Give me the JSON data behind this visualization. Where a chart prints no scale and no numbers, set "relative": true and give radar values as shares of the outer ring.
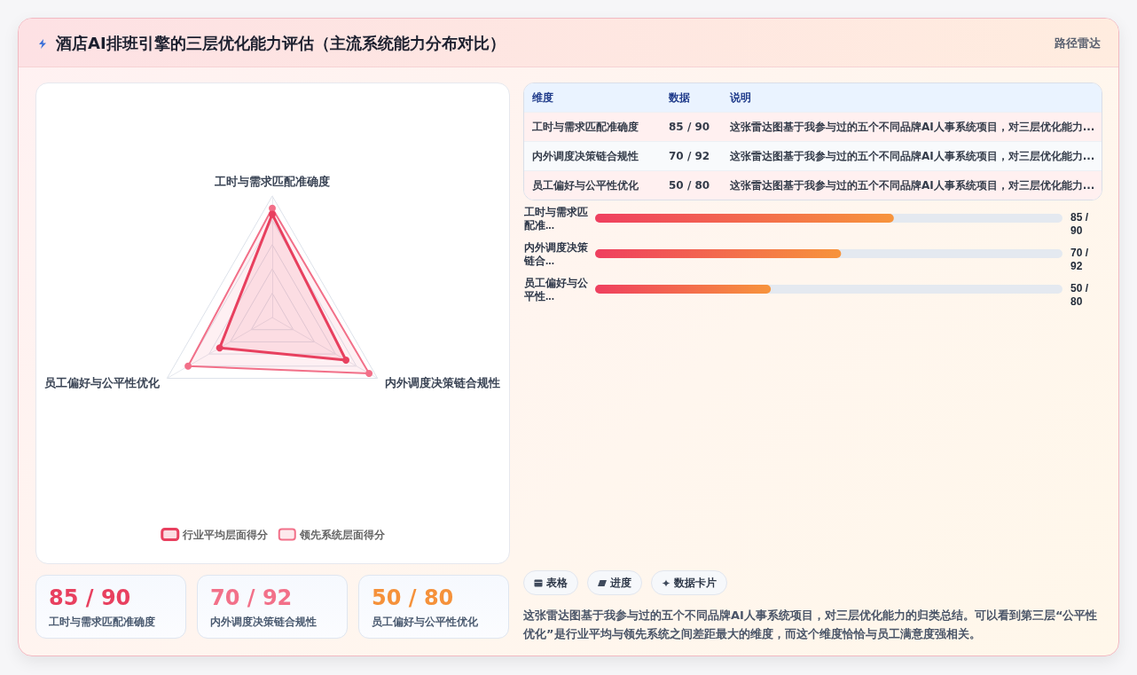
{
  "chart_data": [
    {
      "type": "other",
      "title": "酒店AI排班引擎的三层优化能力评估（主流系统能力分布对比）",
      "subtitle": "路径雷达"
    },
    {
      "type": "radar",
      "relative": true,
      "categories": [
        "工时与需求匹配准确度",
        "内外调度决策链合规性",
        "员工偏好与公平性优化"
      ],
      "series": [
        {
          "name": "行业平均层面得分",
          "color": "#e8405f",
          "values": [
            0.85,
            0.7,
            0.5
          ]
        },
        {
          "name": "领先系统层面得分",
          "color": "#f27089",
          "values": [
            0.9,
            0.92,
            0.8
          ]
        }
      ],
      "grid": true,
      "legend": "bottom",
      "marker": "circle",
      "line_style": "solid"
    },
    {
      "type": "other",
      "annotations": [
        "维度",
        "数据",
        "说明",
        "工时与需求匹配准确度",
        "85 / 90",
        "这张雷达图基于我参与过的五个不同品牌AI人事系统项目，对三层优化能力...",
        "内外调度决策链合规性",
        "70 / 92",
        "这张雷达图基于我参与过的五个不同品牌AI人事系统项目，对三层优化能力...",
        "员工偏好与公平性优化",
        "50 / 80",
        "这张雷达图基于我参与过的五个不同品牌AI人事系统项目，对三层优化能力..."
      ]
    },
    {
      "type": "bar",
      "orientation": "horizontal",
      "categories": [
        "工时与需求匹配准...",
        "内外调度决策链合...",
        "员工偏好与公平性..."
      ],
      "values": [
        85,
        70,
        50
      ],
      "value_labels": [
        "85 / 90",
        "70 / 92",
        "50 / 80"
      ],
      "color": "#ef3f5f",
      "xlim": [
        0,
        133
      ],
      "tick_labels": "y"
    },
    {
      "type": "other",
      "categories": [
        "工时与需求匹配准确度",
        "内外调度决策链合规性",
        "员工偏好与公平性优化"
      ],
      "value_labels": [
        "85 / 90",
        "70 / 92",
        "50 / 80"
      ]
    },
    {
      "type": "other",
      "annotations": [
        "表格",
        "进度",
        "数据卡片",
        "这张雷达图基于我参与过的五个不同品牌AI人事系统项目，对三层优化能力的归类总结。可以看到第三层“公平性优化”是行业平均与领先系统之间差距最大的维度，而这个维度恰恰与员工满意度强相关。"
      ]
    }
  ]
}
